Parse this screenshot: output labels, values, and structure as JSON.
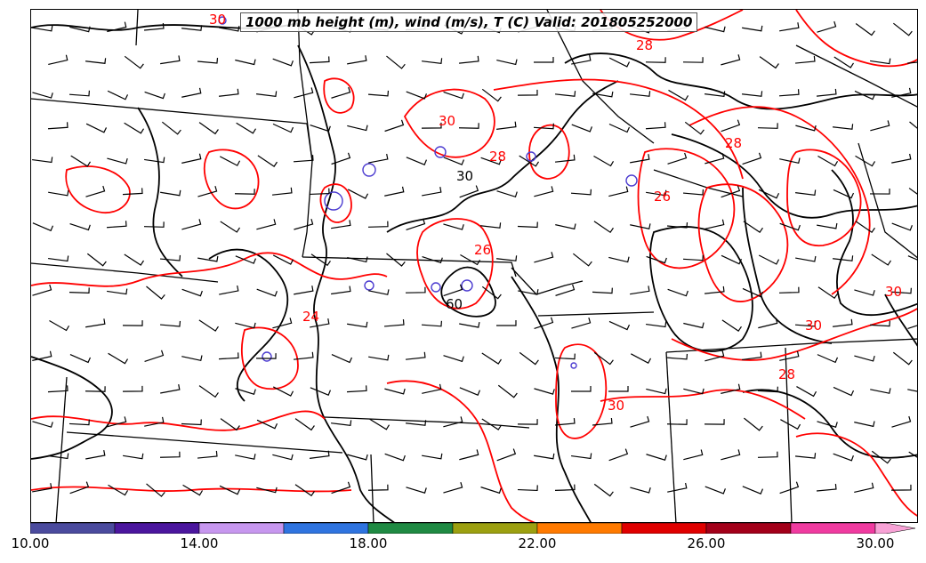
{
  "title": "1000 mb height (m), wind (m/s), T (C) Valid: 201805252000",
  "contour_labels": {
    "height": [
      "30",
      "60"
    ],
    "temperature": [
      "28",
      "28",
      "30",
      "26",
      "26",
      "28",
      "24",
      "30",
      "28",
      "30",
      "30",
      "30"
    ]
  },
  "colorbar": {
    "colors": [
      "#4b4b9e",
      "#4b169e",
      "#c797ef",
      "#2f74e0",
      "#1f8a43",
      "#9ca010",
      "#ff7a00",
      "#e00000",
      "#a3001a",
      "#f03ba0",
      "#f8a2d6"
    ],
    "tick_labels": [
      "10.00",
      "14.00",
      "18.00",
      "22.00",
      "26.00",
      "30.00"
    ]
  },
  "styles": {
    "temperature_contour_color": "#ff0000",
    "height_contour_color": "#000000",
    "small_contour_color": "#4b3bd0"
  }
}
